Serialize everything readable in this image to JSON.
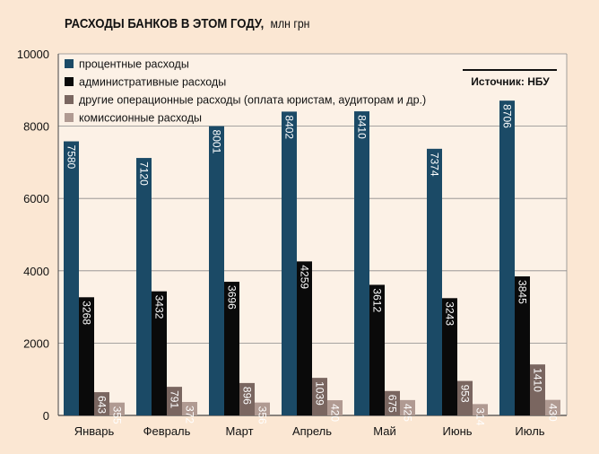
{
  "chart_data": {
    "type": "bar",
    "title": "РАСХОДЫ БАНКОВ В ЭТОМ ГОДУ,",
    "unit": "млн грн",
    "source": "Источник: НБУ",
    "categories": [
      "Январь",
      "Февраль",
      "Март",
      "Апрель",
      "Май",
      "Июнь",
      "Июль"
    ],
    "ylim": [
      0,
      10000
    ],
    "yticks": [
      "0",
      "2000",
      "4000",
      "6000",
      "8000",
      "10000"
    ],
    "grid": true,
    "legend_position": "top-left",
    "series": [
      {
        "name": "процентные расходы",
        "color": "#1b4a66",
        "values": [
          7580,
          7120,
          8001,
          8402,
          8410,
          7374,
          8706
        ],
        "labels": [
          "7580",
          "7120",
          "8001",
          "8402",
          "8410",
          "7374",
          "8706"
        ]
      },
      {
        "name": "административные расходы",
        "color": "#0a0a0a",
        "values": [
          3268,
          3432,
          3696,
          4259,
          3612,
          3243,
          3845
        ],
        "labels": [
          "3268",
          "3432",
          "3696",
          "4259",
          "3612",
          "3243",
          "3845"
        ]
      },
      {
        "name": "другие операционные расходы (оплата юристам, аудиторам и др.)",
        "color": "#7a6660",
        "values": [
          643,
          791,
          896,
          1039,
          675,
          953,
          1410
        ],
        "labels": [
          "643",
          "791",
          "896",
          "1039",
          "675",
          "953",
          "1410"
        ]
      },
      {
        "name": "комиссионные расходы",
        "color": "#b09a92",
        "values": [
          355,
          372,
          356,
          420,
          425,
          314,
          430
        ],
        "labels": [
          "355",
          "372",
          "356",
          "420",
          "425",
          "314",
          "430"
        ]
      }
    ]
  }
}
